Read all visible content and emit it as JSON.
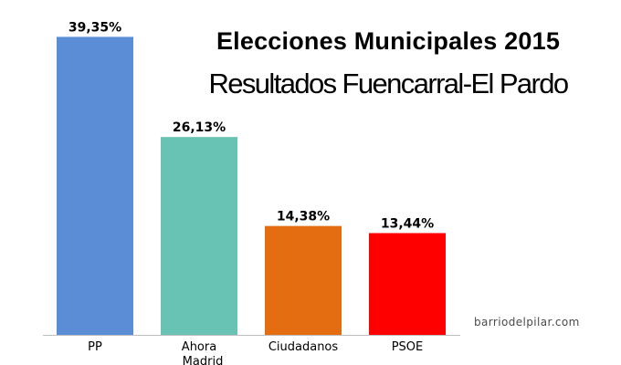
{
  "title": "Elecciones Municipales 2015",
  "subtitle": "Resultados Fuencarral-El Pardo",
  "watermark": "barriodelpilar.com",
  "chart_data": {
    "type": "bar",
    "title": "Elecciones Municipales 2015",
    "subtitle": "Resultados Fuencarral-El Pardo",
    "xlabel": "",
    "ylabel": "",
    "ylim": [
      0,
      45
    ],
    "grid": false,
    "legend": "none",
    "categories": [
      [
        "PP"
      ],
      [
        "Ahora",
        "Madrid"
      ],
      [
        "Ciudadanos"
      ],
      [
        "PSOE"
      ]
    ],
    "values": [
      39.35,
      26.13,
      14.38,
      13.44
    ],
    "value_labels": [
      "39,35%",
      "26,13%",
      "14,38%",
      "13,44%"
    ],
    "colors": [
      "#5b8cd6",
      "#69c3b5",
      "#e56d11",
      "#ff0000"
    ],
    "axis_color": "#bfbfbf"
  }
}
